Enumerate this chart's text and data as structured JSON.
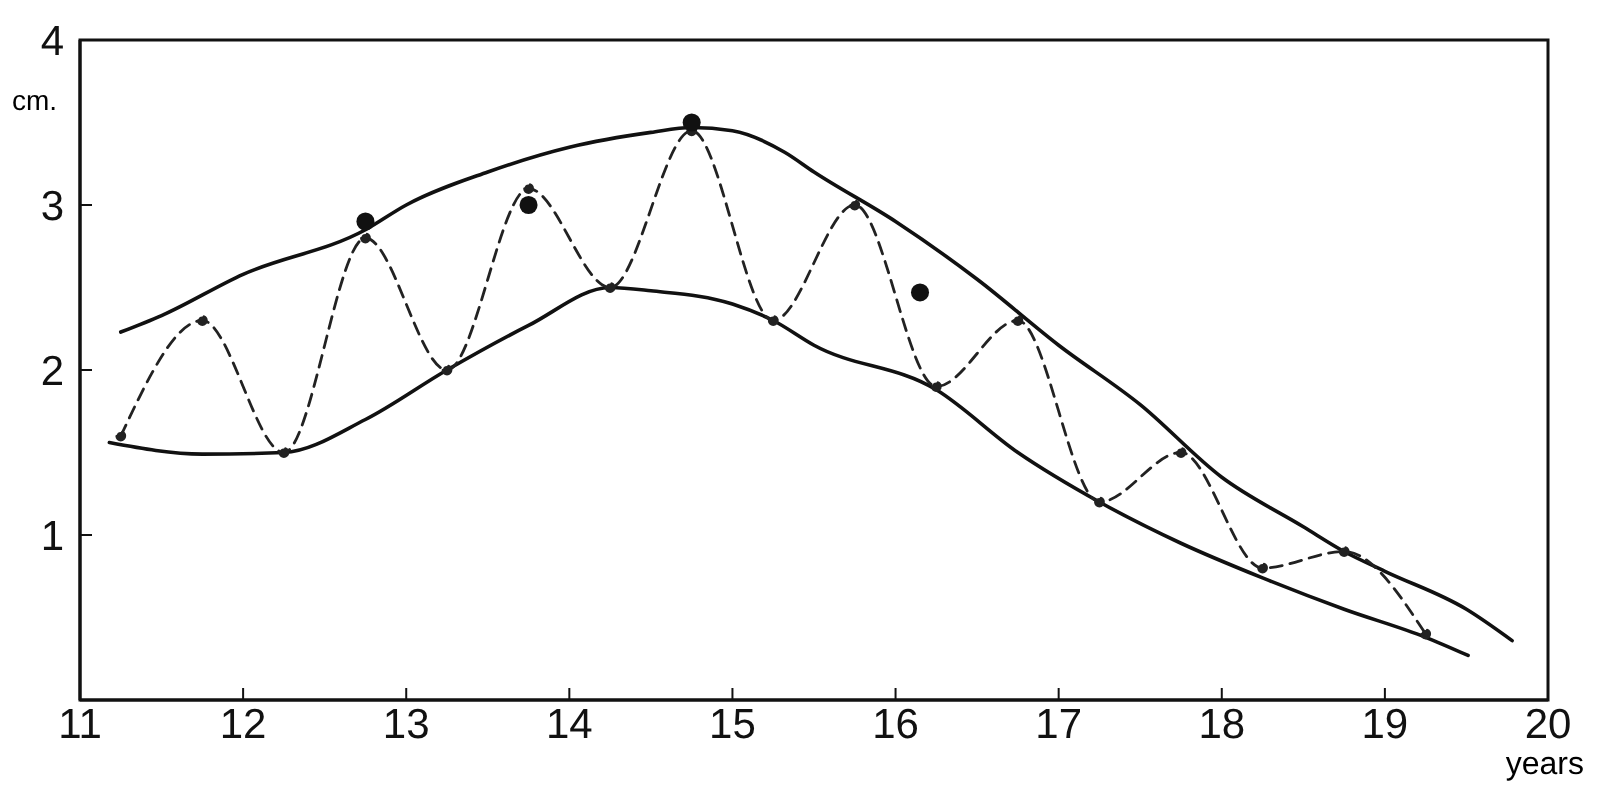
{
  "chart_data": {
    "type": "line",
    "xlabel": "years",
    "ylabel": "cm.",
    "xlim": [
      11,
      20
    ],
    "ylim": [
      0,
      4
    ],
    "xticks": [
      11,
      12,
      13,
      14,
      15,
      16,
      17,
      18,
      19,
      20
    ],
    "yticks": [
      1,
      2,
      3,
      4
    ],
    "grid": false,
    "legend": false,
    "series": [
      {
        "color": "#111111",
        "line_style": "solid",
        "marker": "none",
        "x": [
          11.25,
          11.5,
          12,
          12.75,
          13,
          13.5,
          14,
          14.5,
          14.75,
          15,
          15.32,
          15.5,
          16,
          16.5,
          17,
          17.5,
          18,
          18.5,
          18.75,
          19,
          19.5,
          19.78
        ],
        "values": [
          2.23,
          2.33,
          2.58,
          2.85,
          3.0,
          3.2,
          3.35,
          3.44,
          3.47,
          3.45,
          3.32,
          3.2,
          2.9,
          2.55,
          2.15,
          1.79,
          1.35,
          1.05,
          0.9,
          0.78,
          0.55,
          0.36
        ]
      },
      {
        "color": "#111111",
        "line_style": "solid",
        "marker": "none",
        "x": [
          11.18,
          11.75,
          12.25,
          12.75,
          13.25,
          13.75,
          14.25,
          14.5,
          15,
          15.25,
          15.5,
          16.25,
          16.75,
          17.25,
          17.75,
          18.25,
          18.75,
          19.25,
          19.51
        ],
        "values": [
          1.56,
          1.49,
          1.5,
          1.7,
          2.0,
          2.27,
          2.5,
          2.48,
          2.4,
          2.3,
          2.15,
          1.88,
          1.5,
          1.2,
          0.95,
          0.74,
          0.55,
          0.38,
          0.27
        ]
      },
      {
        "color": "#222222",
        "line_style": "dashed",
        "marker": "circle",
        "x": [
          11.25,
          11.75,
          12.25,
          12.75,
          13.25,
          13.75,
          14.25,
          14.75,
          15.25,
          15.75,
          16.25,
          16.75,
          17.25,
          17.75,
          18.25,
          18.75,
          19.25
        ],
        "values": [
          1.6,
          2.3,
          1.5,
          2.8,
          2.0,
          3.1,
          2.5,
          3.45,
          2.3,
          3.0,
          1.9,
          2.3,
          1.2,
          1.5,
          0.8,
          0.9,
          0.4
        ]
      },
      {
        "type": "scatter",
        "color": "#111111",
        "marker": "circle",
        "x": [
          12.75,
          13.75,
          14.75,
          16.15
        ],
        "values": [
          2.9,
          3.0,
          3.5,
          2.47
        ]
      }
    ]
  }
}
